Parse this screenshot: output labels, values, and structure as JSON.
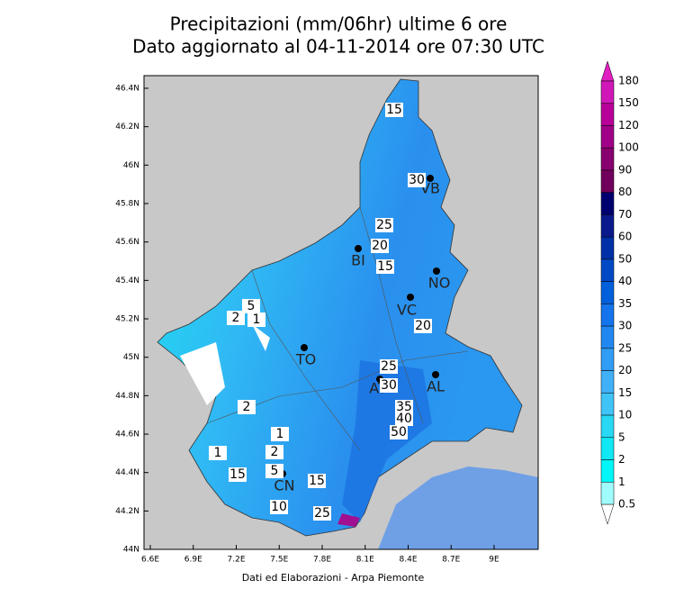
{
  "header": {
    "title_lines": [
      "Precipitazioni (mm/06hr) ultime 6 ore",
      "Dato aggiornato al 04-11-2014 ore 07:30 UTC"
    ]
  },
  "map": {
    "lat_labels": [
      "46.4N",
      "46.2N",
      "46N",
      "45.8N",
      "45.6N",
      "45.4N",
      "45.2N",
      "45N",
      "44.8N",
      "44.6N",
      "44.4N",
      "44.2N",
      "44N"
    ],
    "lon_labels": [
      "6.6E",
      "6.9E",
      "7.2E",
      "7.5E",
      "7.8E",
      "8.1E",
      "8.4E",
      "8.7E",
      "9E"
    ],
    "cities": [
      "TO",
      "VB",
      "BI",
      "NO",
      "VC",
      "AL",
      "AT",
      "CN"
    ],
    "contour_labels": [
      15,
      30,
      25,
      20,
      15,
      20,
      5,
      2,
      1,
      25,
      30,
      35,
      40,
      50,
      2,
      1,
      2,
      5,
      15,
      15,
      10,
      25,
      1
    ]
  },
  "legend": {
    "levels": [
      180,
      150,
      120,
      100,
      90,
      80,
      70,
      60,
      50,
      40,
      35,
      30,
      25,
      20,
      15,
      10,
      5,
      2,
      1,
      0.5
    ],
    "colors": [
      "#d018b8",
      "#b80098",
      "#a00088",
      "#880070",
      "#70005c",
      "#000070",
      "#0a1a8c",
      "#0030a8",
      "#0048c4",
      "#0060dc",
      "#1474ec",
      "#2088f0",
      "#309cf4",
      "#40b0f8",
      "#40c4f8",
      "#28d8f4",
      "#10e8f4",
      "#00f6f8",
      "#a0fcfc"
    ]
  },
  "footer": {
    "credit": "Dati ed Elaborazioni - Arpa Piemonte"
  }
}
